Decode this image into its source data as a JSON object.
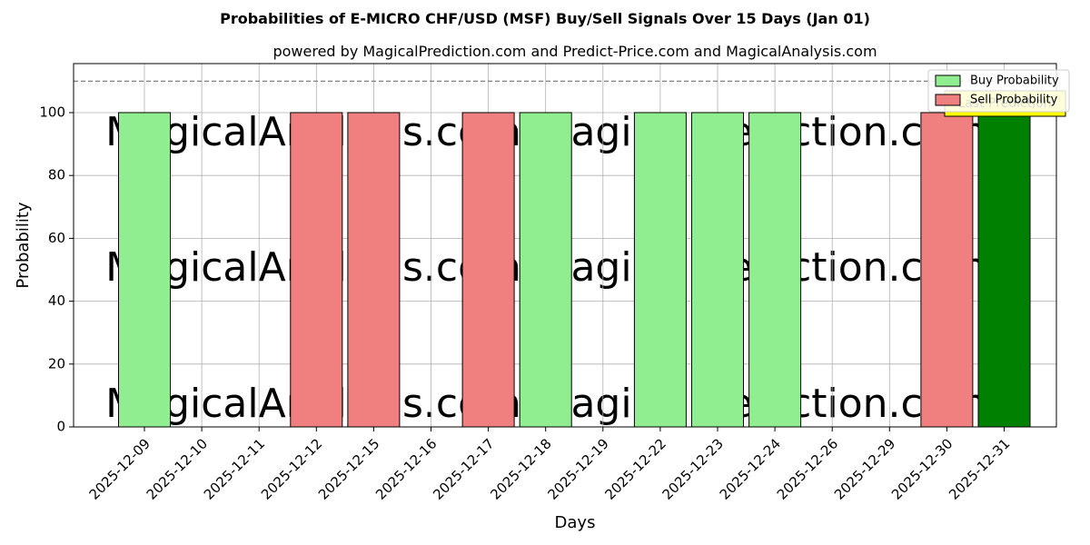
{
  "chart_data": {
    "type": "bar",
    "title": "Probabilities of E-MICRO CHF/USD (MSF) Buy/Sell Signals Over 15 Days (Jan 01)",
    "subtitle": "powered by MagicalPrediction.com and Predict-Price.com and MagicalAnalysis.com",
    "x_label": "Days",
    "y_label": "Probability",
    "categories": [
      "2025-12-09",
      "2025-12-10",
      "2025-12-11",
      "2025-12-12",
      "2025-12-15",
      "2025-12-16",
      "2025-12-17",
      "2025-12-18",
      "2025-12-19",
      "2025-12-22",
      "2025-12-23",
      "2025-12-24",
      "2025-12-26",
      "2025-12-29",
      "2025-12-30",
      "2025-12-31"
    ],
    "series": [
      {
        "name": "Buy Probability",
        "color": "#90ee90",
        "colors": [
          "#90ee90",
          "#90ee90",
          "#90ee90",
          "#90ee90",
          "#90ee90",
          "#90ee90",
          "#90ee90",
          "#90ee90",
          "#90ee90",
          "#90ee90",
          "#90ee90",
          "#90ee90",
          "#90ee90",
          "#90ee90",
          "#90ee90",
          "#008000"
        ],
        "values": [
          100,
          0,
          0,
          0,
          0,
          0,
          0,
          100,
          0,
          100,
          100,
          100,
          0,
          0,
          0,
          100
        ]
      },
      {
        "name": "Sell Probability",
        "color": "#f08080",
        "values": [
          0,
          0,
          0,
          100,
          100,
          0,
          100,
          0,
          0,
          0,
          0,
          0,
          0,
          0,
          100,
          0
        ]
      }
    ],
    "ylim": [
      0,
      115.6
    ],
    "yticks": [
      0,
      20,
      40,
      60,
      80,
      100
    ],
    "reference_line": 110,
    "grid": true,
    "legend": "upper right",
    "annotation": "Last Prediction",
    "watermarks": [
      "MagicalAnalysis.com",
      "MagicalPrediction.com"
    ]
  }
}
